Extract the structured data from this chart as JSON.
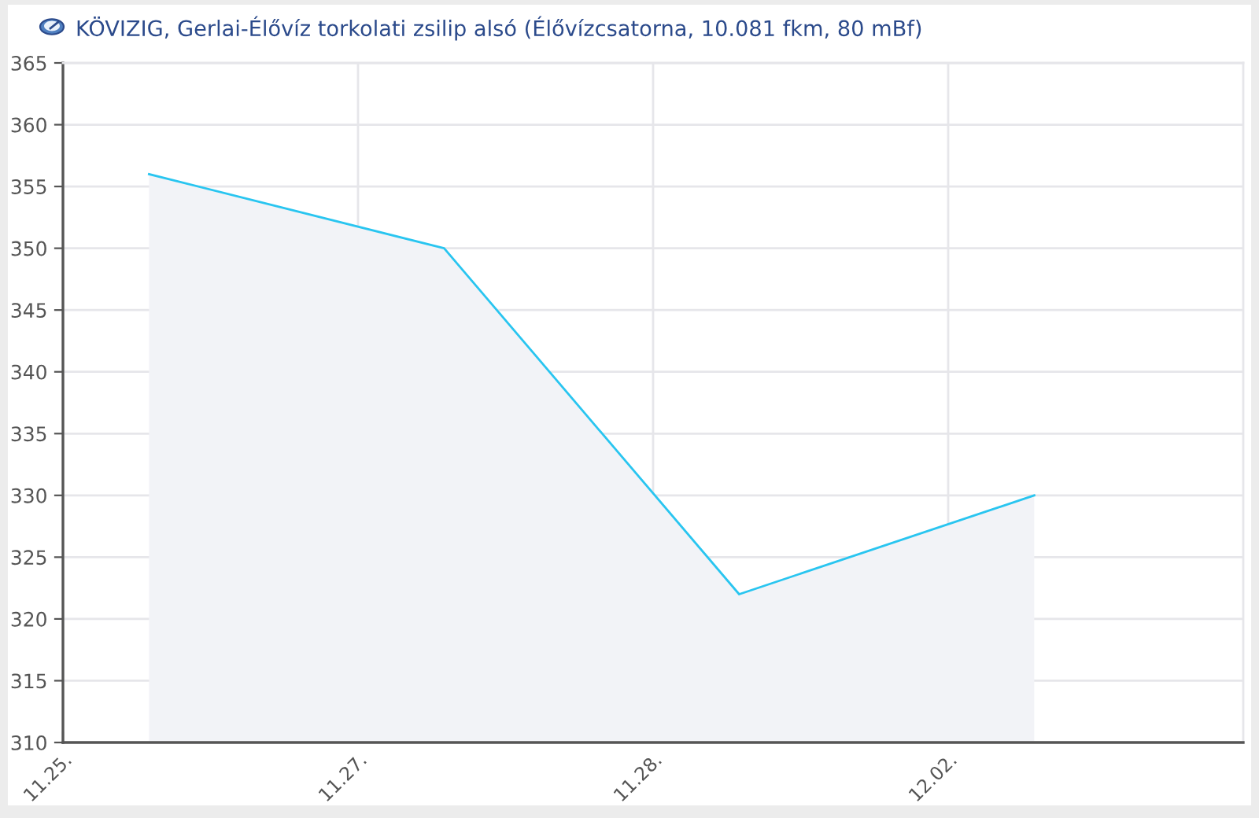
{
  "chart_data": {
    "type": "area",
    "title": "KÖVIZIG, Gerlai-Élővíz torkolati zsilip alsó (Élővízcsatorna, 10.081 fkm, 80 mBf)",
    "categories": [
      "11.25.",
      "11.27.",
      "11.28.",
      "12.02."
    ],
    "series": [
      {
        "color": "#29c5f0",
        "values": [
          356,
          350,
          322,
          330
        ]
      }
    ],
    "ylim": [
      310,
      365
    ],
    "yticks": [
      310,
      315,
      320,
      325,
      330,
      335,
      340,
      345,
      350,
      355,
      360,
      365
    ],
    "grid": true
  }
}
